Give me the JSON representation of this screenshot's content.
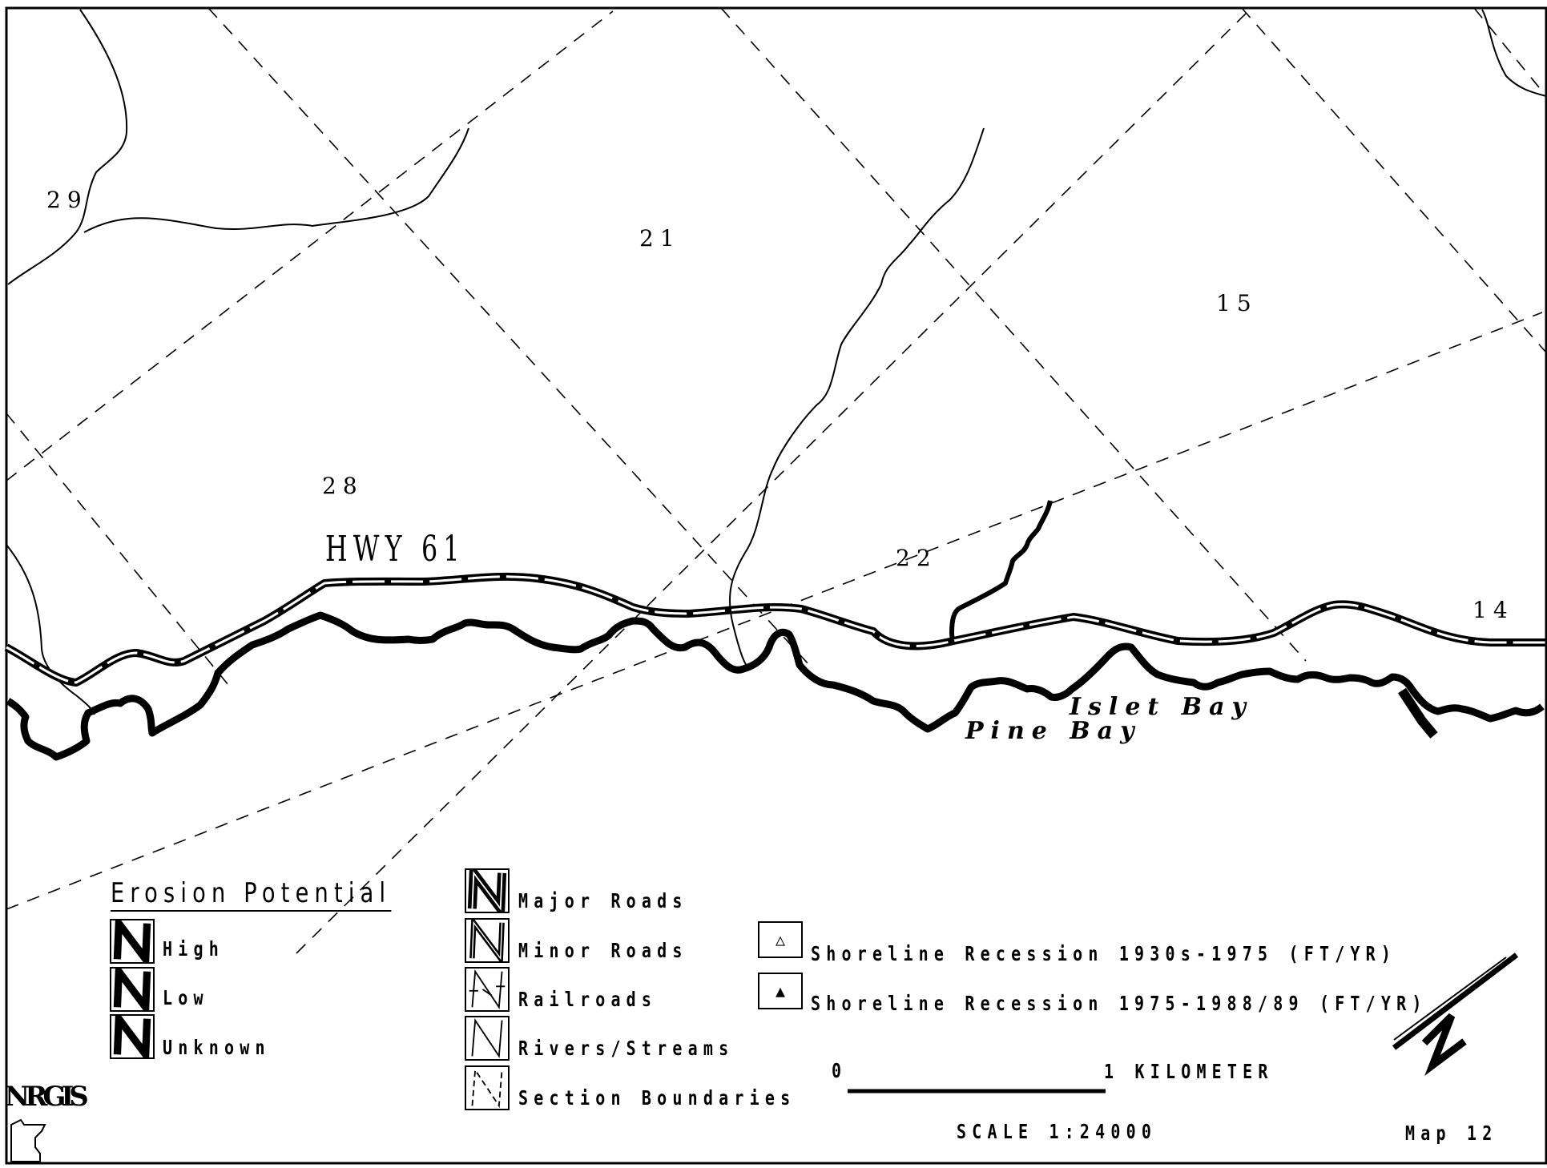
{
  "sections": [
    "29",
    "21",
    "15",
    "28",
    "22",
    "14"
  ],
  "highway_label": "HWY 61",
  "bays": [
    "Islet Bay",
    "Pine Bay"
  ],
  "legend": {
    "title": "Erosion Potential",
    "erosion_items": [
      "High",
      "Low",
      "Unknown"
    ],
    "line_items": [
      "Major Roads",
      "Minor Roads",
      "Railroads",
      "Rivers/Streams",
      "Section Boundaries"
    ],
    "recession_items": [
      {
        "icon": "hollow-triangle-icon",
        "glyph": "△",
        "label": "Shoreline Recession 1930s-1975 (FT/YR)"
      },
      {
        "icon": "filled-triangle-icon",
        "glyph": "▲",
        "label": "Shoreline Recession 1975-1988/89 (FT/YR)"
      }
    ]
  },
  "scale": {
    "start": "0",
    "end": "1 KILOMETER",
    "text": "SCALE 1:24000"
  },
  "map_number": "Map 12",
  "logo_text": "NRGIS",
  "colors": {
    "ink": "#000000",
    "paper": "#ffffff",
    "road_inner": "#ffffff"
  }
}
